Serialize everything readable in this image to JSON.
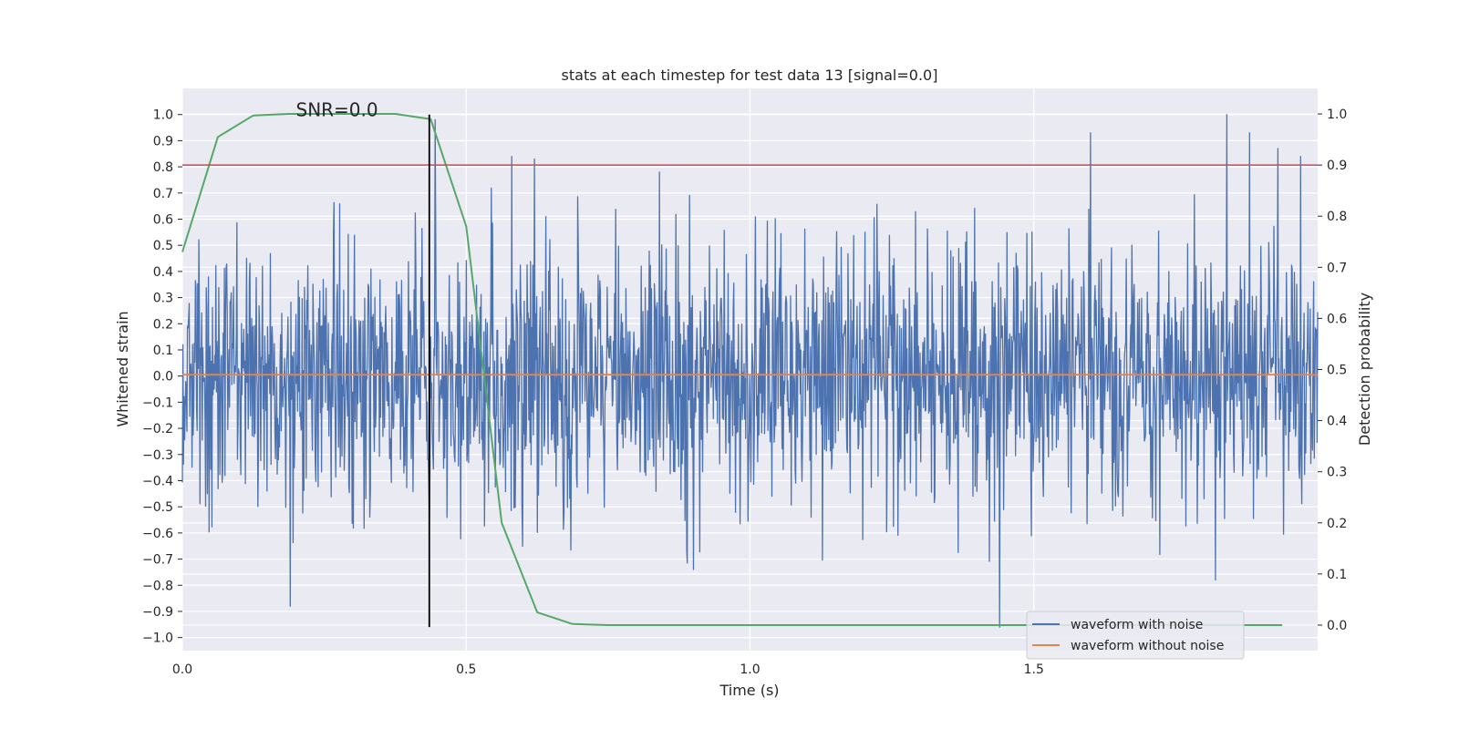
{
  "chart_data": {
    "type": "line",
    "title": "stats at each timestep for test data 13 [signal=0.0]",
    "xlabel": "Time (s)",
    "ylabel": "Whitened strain",
    "y2label": "Detection probability",
    "xlim": [
      0.0,
      2.0
    ],
    "ylim": [
      -1.05,
      1.1
    ],
    "y2lim": [
      -0.05,
      1.05
    ],
    "x_ticks": [
      0.0,
      0.5,
      1.0,
      1.5
    ],
    "x_tick_labels": [
      "0.0",
      "0.5",
      "1.0",
      "1.5"
    ],
    "y_ticks": [
      -1.0,
      -0.9,
      -0.8,
      -0.7,
      -0.6,
      -0.5,
      -0.4,
      -0.3,
      -0.2,
      -0.1,
      0.0,
      0.1,
      0.2,
      0.3,
      0.4,
      0.5,
      0.6,
      0.7,
      0.8,
      0.9,
      1.0
    ],
    "y_tick_labels": [
      "−1.0",
      "−0.9",
      "−0.8",
      "−0.7",
      "−0.6",
      "−0.5",
      "−0.4",
      "−0.3",
      "−0.2",
      "−0.1",
      "0.0",
      "0.1",
      "0.2",
      "0.3",
      "0.4",
      "0.5",
      "0.6",
      "0.7",
      "0.8",
      "0.9",
      "1.0"
    ],
    "y2_ticks": [
      0.0,
      0.1,
      0.2,
      0.3,
      0.4,
      0.5,
      0.6,
      0.7,
      0.8,
      0.9,
      1.0
    ],
    "y2_tick_labels": [
      "0.0",
      "0.1",
      "0.2",
      "0.3",
      "0.4",
      "0.5",
      "0.6",
      "0.7",
      "0.8",
      "0.9",
      "1.0"
    ],
    "grid": true,
    "annotation": {
      "text": "SNR=0.0",
      "x": 0.2,
      "y": 1.0
    },
    "vertical_line": {
      "x": 0.435,
      "y_from": -0.96,
      "y_to": 1.0,
      "color": "#000000"
    },
    "threshold": {
      "y2": 0.9,
      "color": "#c44e52"
    },
    "series": [
      {
        "name": "waveform with noise",
        "axis": "left",
        "color": "#4c72b0",
        "kind": "noise",
        "n_points": 2000,
        "x_start": 0.0,
        "x_end": 2.0,
        "std": 0.25,
        "seed": 13,
        "spikes": [
          {
            "x": 0.19,
            "y": 0.74
          },
          {
            "x": 0.19,
            "y": -0.88
          },
          {
            "x": 0.445,
            "y": 0.98
          },
          {
            "x": 0.58,
            "y": 0.84
          },
          {
            "x": 0.62,
            "y": 0.83
          },
          {
            "x": 0.84,
            "y": 0.78
          },
          {
            "x": 0.9,
            "y": -0.74
          },
          {
            "x": 1.44,
            "y": -0.96
          },
          {
            "x": 1.6,
            "y": 0.93
          },
          {
            "x": 1.82,
            "y": -0.78
          },
          {
            "x": 1.84,
            "y": 1.0
          },
          {
            "x": 1.88,
            "y": 0.93
          },
          {
            "x": 1.93,
            "y": 0.87
          },
          {
            "x": 1.97,
            "y": 0.84
          }
        ]
      },
      {
        "name": "waveform without noise",
        "axis": "left",
        "color": "#dd8452",
        "kind": "line",
        "x": [
          0.0,
          2.0
        ],
        "y": [
          0.005,
          0.005
        ]
      },
      {
        "name": "detection probability",
        "axis": "right",
        "color": "#55a868",
        "kind": "line",
        "x": [
          0.0,
          0.0625,
          0.125,
          0.1875,
          0.25,
          0.3125,
          0.375,
          0.4375,
          0.5,
          0.5625,
          0.625,
          0.6875,
          0.75,
          0.8125,
          0.875,
          0.9375,
          1.0,
          1.0625,
          1.125,
          1.1875,
          1.25,
          1.3125,
          1.375,
          1.4375,
          1.5,
          1.5625,
          1.625,
          1.6875,
          1.75,
          1.8125,
          1.875,
          1.9375
        ],
        "y": [
          0.73,
          0.955,
          0.997,
          1.0,
          1.0,
          1.0,
          1.0,
          0.99,
          0.78,
          0.2,
          0.025,
          0.002,
          0.0,
          0.0,
          0.0,
          0.0,
          0.0,
          0.0,
          0.0,
          0.0,
          0.0,
          0.0,
          0.0,
          0.0,
          0.0,
          0.0,
          0.0,
          0.0,
          0.0,
          0.0,
          0.0,
          0.0
        ]
      }
    ],
    "legend": {
      "position": "lower-right",
      "entries": [
        {
          "label": "waveform with noise",
          "color": "#4c72b0"
        },
        {
          "label": "waveform without noise",
          "color": "#dd8452"
        }
      ]
    },
    "colors": {
      "plot_background": "#eaeaf2",
      "grid": "#ffffff",
      "text": "#262626"
    }
  }
}
